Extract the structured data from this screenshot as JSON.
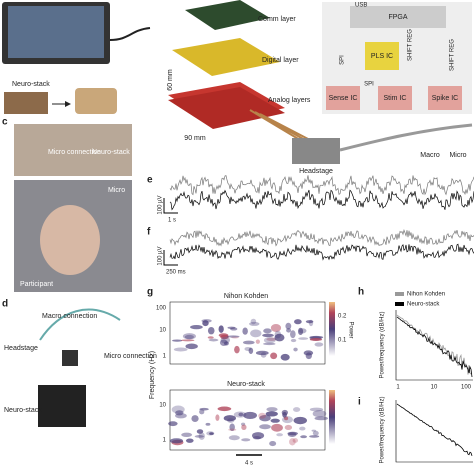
{
  "a": {
    "label": "Neuro-stack"
  },
  "b": {
    "layers": [
      "Comm layer",
      "Digital layer",
      "Analog layers"
    ],
    "dims": [
      "60 mm",
      "90 mm"
    ],
    "headstage": "Headstage",
    "usb": "USB",
    "fpga": "FPGA",
    "spi_left": "SPI",
    "pls": "PLS IC",
    "shift_left": "SHIFT REG",
    "shift_right": "SHIFT REG",
    "sense": "Sense IC",
    "spi_mid": "SPI",
    "stim": "Stim IC",
    "spike": "Spike IC",
    "macro": "Macro",
    "micro": "Micro"
  },
  "c": {
    "label": "c",
    "micro_connection": "Micro connection",
    "neuro_stack": "Neuro-stack",
    "micro": "Micro",
    "participant": "Participant"
  },
  "d": {
    "label": "d",
    "macro_connection": "Macro connection",
    "headstage": "Headstage",
    "micro_connection": "Micro connection",
    "neuro_stack": "Neuro-stack"
  },
  "e": {
    "label": "e",
    "scale_v": "100 µV",
    "scale_t": "1 s"
  },
  "f": {
    "label": "f",
    "scale_v": "100 µV",
    "scale_t": "250 ms"
  },
  "g": {
    "label": "g",
    "top_title": "Nihon Kohden",
    "bottom_title": "Neuro-stack",
    "ylabel": "Frequency (Hz)",
    "top_yticks": [
      "100",
      "10",
      "1"
    ],
    "bottom_yticks": [
      "10",
      "1"
    ],
    "colorbar_ticks": [
      "0.2",
      "0.1"
    ],
    "colorbar_label": "Power",
    "scale_t": "4 s"
  },
  "h": {
    "label": "h",
    "legend": [
      "Nihon Kohden",
      "Neuro-stack"
    ],
    "ylabel": "Power/frequency (dB/Hz)",
    "xticks": [
      "1",
      "10",
      "100"
    ]
  },
  "i": {
    "label": "i",
    "ylabel": "Power/frequency (dB/Hz)"
  }
}
